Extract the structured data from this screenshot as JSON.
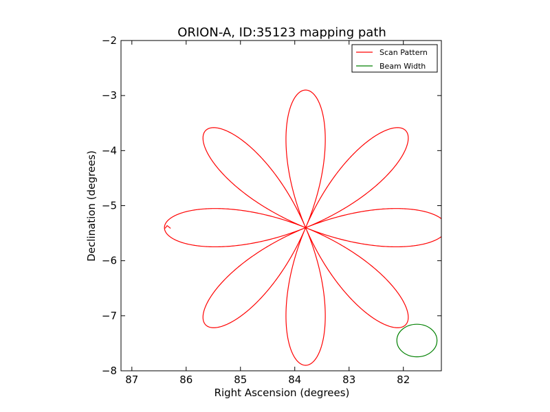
{
  "chart_data": {
    "type": "line",
    "title": "ORION-A, ID:35123 mapping path",
    "xlabel": "Right Ascension (degrees)",
    "ylabel": "Declination (degrees)",
    "xlim": [
      87.2,
      81.3
    ],
    "ylim": [
      -8,
      -2
    ],
    "x_inverted": true,
    "xticks": [
      87,
      86,
      85,
      84,
      83,
      82
    ],
    "xtick_labels": [
      "87",
      "86",
      "85",
      "84",
      "83",
      "82"
    ],
    "yticks": [
      -2,
      -3,
      -4,
      -5,
      -6,
      -7,
      -8
    ],
    "ytick_labels": [
      "−2",
      "−3",
      "−4",
      "−5",
      "−6",
      "−7",
      "−8"
    ],
    "grid": false,
    "legend": {
      "placement": "top-right"
    },
    "series": [
      {
        "name": "Scan Pattern",
        "color": "#ff0000",
        "kind": "rose-curve",
        "center": [
          83.8,
          -5.4
        ],
        "petals": 8,
        "petal_length_ra_deg": 2.6,
        "petal_length_dec_deg": 2.5,
        "partial_start_point": [
          86.35,
          -5.4
        ]
      },
      {
        "name": "Beam Width",
        "color": "#008000",
        "kind": "circle",
        "center": [
          81.75,
          -7.45
        ],
        "radius_deg": 0.37
      }
    ]
  }
}
